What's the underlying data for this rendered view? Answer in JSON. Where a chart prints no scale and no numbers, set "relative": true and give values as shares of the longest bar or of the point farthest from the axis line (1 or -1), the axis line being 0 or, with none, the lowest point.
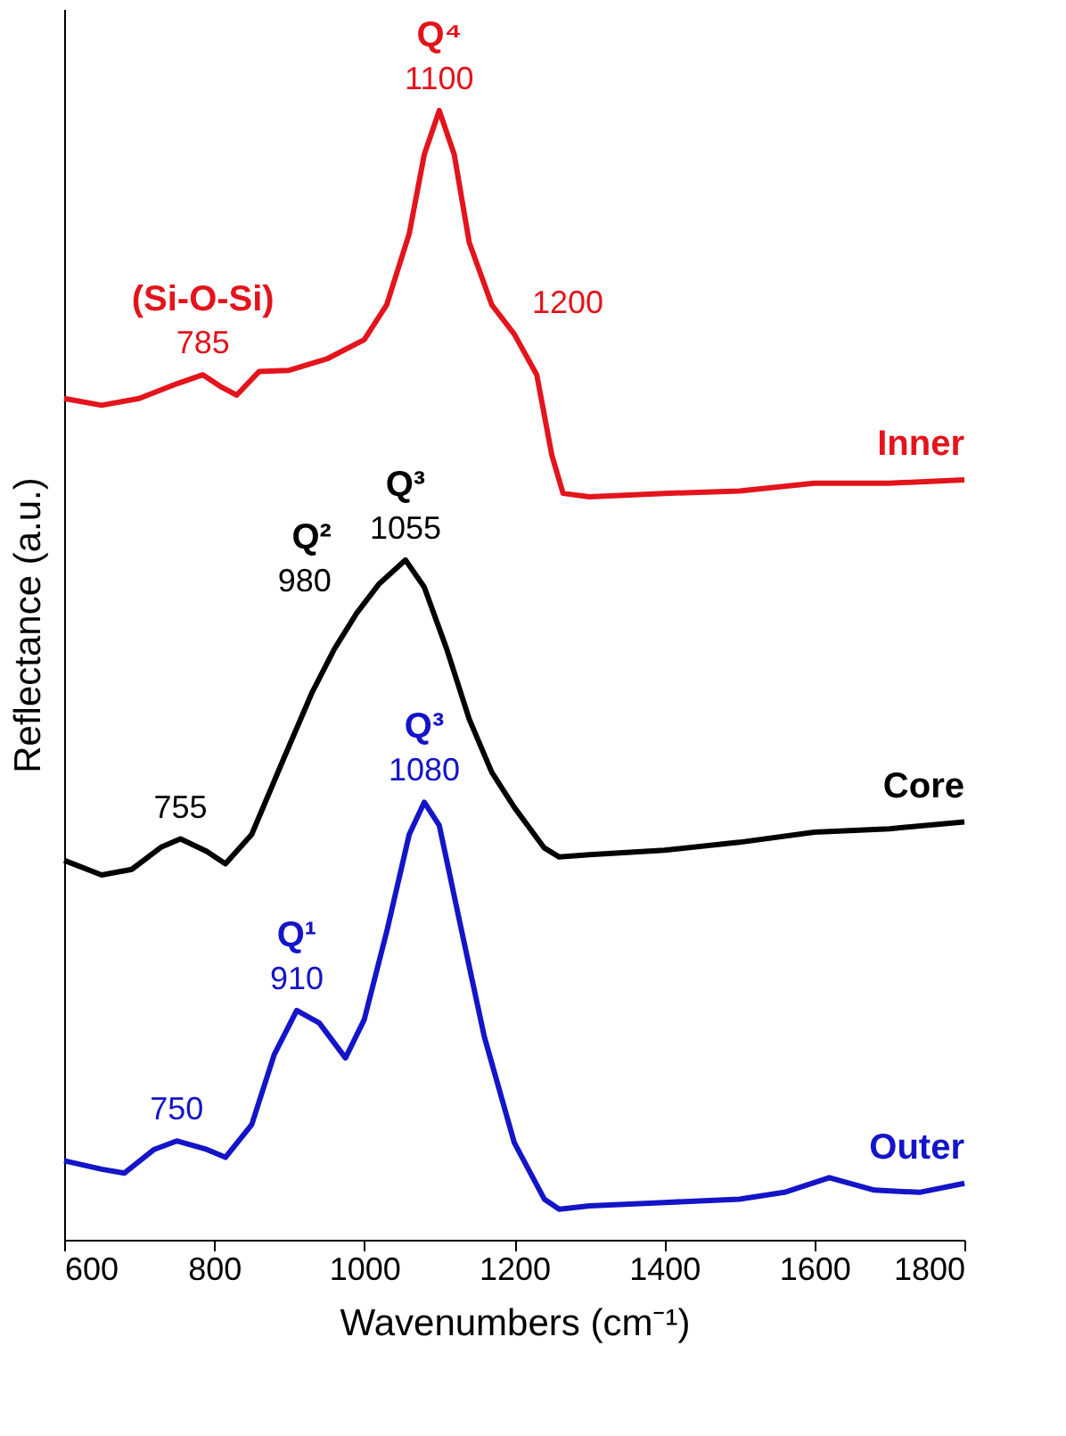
{
  "chart_data": {
    "type": "line",
    "relative": true,
    "xlabel": "Wavenumbers (cm⁻¹)",
    "ylabel": "Reflectance (a.u.)",
    "xlim": [
      600,
      1800
    ],
    "xticks": [
      600,
      800,
      1000,
      1200,
      1400,
      1600,
      1800
    ],
    "grid": false,
    "legend": false,
    "marker": "none",
    "line_style": "solid",
    "series": [
      {
        "name": "Inner",
        "color": "#e3141c",
        "x": [
          600,
          650,
          700,
          750,
          785,
          810,
          830,
          860,
          900,
          950,
          1000,
          1030,
          1060,
          1080,
          1100,
          1120,
          1140,
          1170,
          1200,
          1230,
          1250,
          1265,
          1300,
          1400,
          1500,
          1600,
          1700,
          1800
        ],
        "values": [
          0.745,
          0.739,
          0.745,
          0.758,
          0.766,
          0.755,
          0.748,
          0.769,
          0.77,
          0.78,
          0.797,
          0.828,
          0.891,
          0.961,
          1,
          0.961,
          0.883,
          0.828,
          0.802,
          0.766,
          0.695,
          0.661,
          0.658,
          0.661,
          0.663,
          0.67,
          0.67,
          0.673
        ]
      },
      {
        "name": "Core",
        "color": "#000000",
        "x": [
          600,
          650,
          690,
          730,
          755,
          790,
          815,
          850,
          890,
          930,
          960,
          990,
          1020,
          1055,
          1080,
          1110,
          1140,
          1170,
          1200,
          1240,
          1260,
          1300,
          1400,
          1500,
          1600,
          1700,
          1800
        ],
        "values": [
          0.336,
          0.323,
          0.328,
          0.348,
          0.355,
          0.344,
          0.333,
          0.359,
          0.422,
          0.484,
          0.523,
          0.555,
          0.581,
          0.602,
          0.578,
          0.523,
          0.461,
          0.414,
          0.383,
          0.347,
          0.339,
          0.341,
          0.345,
          0.352,
          0.361,
          0.364,
          0.37
        ]
      },
      {
        "name": "Outer",
        "color": "#1414c8",
        "x": [
          600,
          650,
          680,
          720,
          750,
          790,
          815,
          850,
          880,
          910,
          940,
          975,
          1000,
          1030,
          1060,
          1080,
          1100,
          1130,
          1160,
          1200,
          1240,
          1260,
          1300,
          1400,
          1500,
          1560,
          1620,
          1680,
          1740,
          1800
        ],
        "values": [
          0.07,
          0.0625,
          0.059,
          0.08,
          0.0875,
          0.08,
          0.073,
          0.102,
          0.164,
          0.203,
          0.192,
          0.161,
          0.195,
          0.273,
          0.359,
          0.3875,
          0.367,
          0.273,
          0.18,
          0.086,
          0.036,
          0.027,
          0.03,
          0.033,
          0.036,
          0.042,
          0.055,
          0.044,
          0.042,
          0.05
        ]
      }
    ],
    "annotations": [
      {
        "text": "785",
        "x": 785,
        "y": 0.766
      },
      {
        "text": "(Si-O-Si)",
        "x": 785,
        "y": 0.766
      },
      {
        "text": "1100",
        "x": 1100,
        "y": 1
      },
      {
        "text": "Q⁴",
        "x": 1100,
        "y": 1
      },
      {
        "text": "1200",
        "x": 1200,
        "y": 0.802
      },
      {
        "text": "755",
        "x": 755,
        "y": 0.355
      },
      {
        "text": "980",
        "x": 980,
        "y": 0.555
      },
      {
        "text": "Q²",
        "x": 980,
        "y": 0.555
      },
      {
        "text": "1055",
        "x": 1055,
        "y": 0.602
      },
      {
        "text": "Q³",
        "x": 1055,
        "y": 0.602
      },
      {
        "text": "750",
        "x": 750,
        "y": 0.0875
      },
      {
        "text": "910",
        "x": 910,
        "y": 0.203
      },
      {
        "text": "Q¹",
        "x": 910,
        "y": 0.203
      },
      {
        "text": "1080",
        "x": 1080,
        "y": 0.3875
      },
      {
        "text": "Q³",
        "x": 1080,
        "y": 0.3875
      }
    ]
  }
}
